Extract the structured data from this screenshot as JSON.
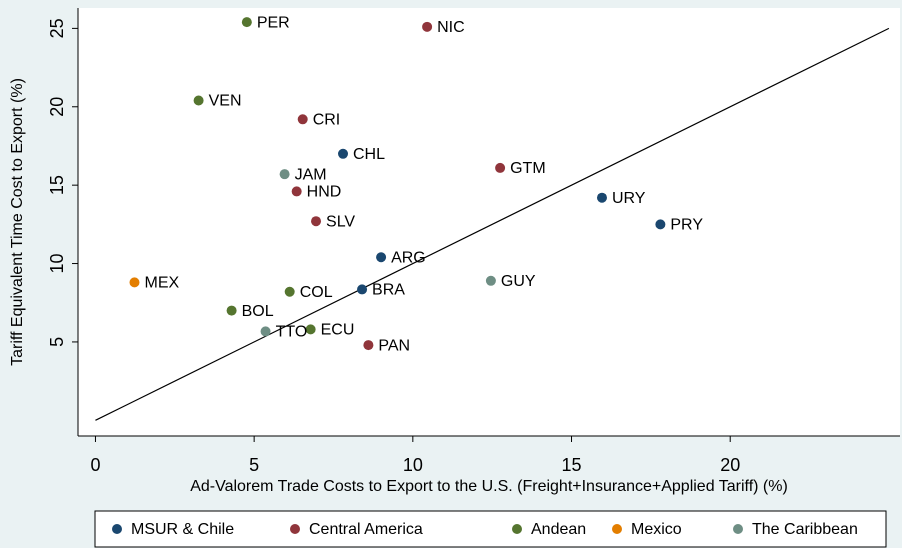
{
  "chart_data": {
    "type": "scatter",
    "x_label": "Ad-Valorem Trade Costs to Export to the U.S. (Freight+Insurance+Applied Tariff) (%)",
    "y_label": "Tariff Equivalent Time Cost to Export (%)",
    "xlim": [
      -0.55,
      25.35
    ],
    "ylim": [
      -1.0,
      26.3
    ],
    "xticks": [
      0,
      5,
      10,
      15,
      20
    ],
    "yticks": [
      5,
      10,
      15,
      20,
      25
    ],
    "reference_line": {
      "x": [
        0,
        25
      ],
      "y": [
        0,
        25
      ]
    },
    "legend": "bottom",
    "series": [
      {
        "name": "MSUR & Chile",
        "color": "#1a476f",
        "labels": [
          "CHL",
          "URY",
          "PRY",
          "ARG",
          "BRA"
        ],
        "x": [
          7.8,
          15.96,
          17.8,
          9.0,
          8.4
        ],
        "values": [
          17.0,
          14.2,
          12.5,
          10.4,
          8.35
        ]
      },
      {
        "name": "Central America",
        "color": "#90353b",
        "labels": [
          "NIC",
          "CRI",
          "GTM",
          "HND",
          "SLV",
          "PAN"
        ],
        "x": [
          10.45,
          6.53,
          12.75,
          6.34,
          6.95,
          8.6
        ],
        "values": [
          25.1,
          19.2,
          16.1,
          14.6,
          12.7,
          4.8
        ]
      },
      {
        "name": "Andean",
        "color": "#55752f",
        "labels": [
          "PER",
          "VEN",
          "COL",
          "BOL",
          "ECU"
        ],
        "x": [
          4.77,
          3.25,
          6.12,
          4.29,
          6.78
        ],
        "values": [
          25.4,
          20.4,
          8.2,
          7.0,
          5.8
        ]
      },
      {
        "name": "Mexico",
        "color": "#e37e00",
        "labels": [
          "MEX"
        ],
        "x": [
          1.23
        ],
        "values": [
          8.8
        ]
      },
      {
        "name": "The Caribbean",
        "color": "#6e8e84",
        "labels": [
          "JAM",
          "GUY",
          "TTO"
        ],
        "x": [
          5.96,
          12.46,
          5.36
        ],
        "values": [
          15.7,
          8.9,
          5.67
        ]
      }
    ]
  }
}
